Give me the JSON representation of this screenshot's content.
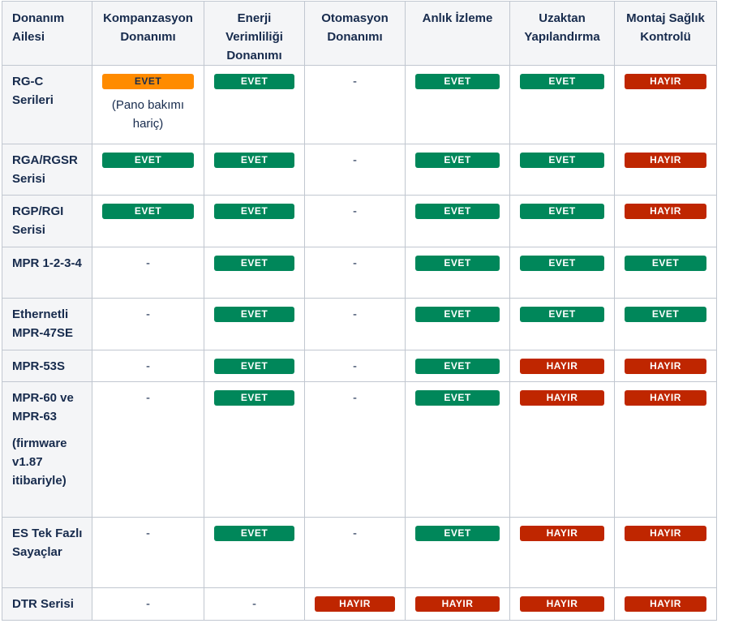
{
  "headers": [
    "Donanım Ailesi",
    "Kompanzasyon Donanımı",
    "Enerji Verimliliği Donanımı",
    "Otomasyon Donanımı",
    "Anlık İzleme",
    "Uzaktan Yapılandırma",
    "Montaj Sağlık Kontrolü"
  ],
  "rows": [
    {
      "family": "RG-C Serileri",
      "family_note": "",
      "cells": [
        {
          "kind": "badge",
          "label": "EVET",
          "color": "orange",
          "note": "(Pano bakımı hariç)"
        },
        {
          "kind": "badge",
          "label": "EVET",
          "color": "green"
        },
        {
          "kind": "dash",
          "label": "-"
        },
        {
          "kind": "badge",
          "label": "EVET",
          "color": "green"
        },
        {
          "kind": "badge",
          "label": "EVET",
          "color": "green"
        },
        {
          "kind": "badge",
          "label": "HAYIR",
          "color": "red"
        }
      ]
    },
    {
      "family": "RGA/RGSR Serisi",
      "family_note": "",
      "cells": [
        {
          "kind": "badge",
          "label": "EVET",
          "color": "green"
        },
        {
          "kind": "badge",
          "label": "EVET",
          "color": "green"
        },
        {
          "kind": "dash",
          "label": "-"
        },
        {
          "kind": "badge",
          "label": "EVET",
          "color": "green"
        },
        {
          "kind": "badge",
          "label": "EVET",
          "color": "green"
        },
        {
          "kind": "badge",
          "label": "HAYIR",
          "color": "red"
        }
      ]
    },
    {
      "family": "RGP/RGI Serisi",
      "family_note": "",
      "cells": [
        {
          "kind": "badge",
          "label": "EVET",
          "color": "green"
        },
        {
          "kind": "badge",
          "label": "EVET",
          "color": "green"
        },
        {
          "kind": "dash",
          "label": "-"
        },
        {
          "kind": "badge",
          "label": "EVET",
          "color": "green"
        },
        {
          "kind": "badge",
          "label": "EVET",
          "color": "green"
        },
        {
          "kind": "badge",
          "label": "HAYIR",
          "color": "red"
        }
      ]
    },
    {
      "family": "MPR 1-2-3-4",
      "family_note": "",
      "cells": [
        {
          "kind": "dash",
          "label": "-"
        },
        {
          "kind": "badge",
          "label": "EVET",
          "color": "green"
        },
        {
          "kind": "dash",
          "label": "-"
        },
        {
          "kind": "badge",
          "label": "EVET",
          "color": "green"
        },
        {
          "kind": "badge",
          "label": "EVET",
          "color": "green"
        },
        {
          "kind": "badge",
          "label": "EVET",
          "color": "green"
        }
      ]
    },
    {
      "family": "Ethernetli MPR-47SE",
      "family_note": "",
      "cells": [
        {
          "kind": "dash",
          "label": "-"
        },
        {
          "kind": "badge",
          "label": "EVET",
          "color": "green"
        },
        {
          "kind": "dash",
          "label": "-"
        },
        {
          "kind": "badge",
          "label": "EVET",
          "color": "green"
        },
        {
          "kind": "badge",
          "label": "EVET",
          "color": "green"
        },
        {
          "kind": "badge",
          "label": "EVET",
          "color": "green"
        }
      ]
    },
    {
      "family": "MPR-53S",
      "family_note": "",
      "cells": [
        {
          "kind": "dash",
          "label": "-"
        },
        {
          "kind": "badge",
          "label": "EVET",
          "color": "green"
        },
        {
          "kind": "dash",
          "label": "-"
        },
        {
          "kind": "badge",
          "label": "EVET",
          "color": "green"
        },
        {
          "kind": "badge",
          "label": "HAYIR",
          "color": "red"
        },
        {
          "kind": "badge",
          "label": "HAYIR",
          "color": "red"
        }
      ]
    },
    {
      "family": "MPR-60 ve MPR-63",
      "family_note": "(firmware v1.87 itibariyle)",
      "cells": [
        {
          "kind": "dash",
          "label": "-"
        },
        {
          "kind": "badge",
          "label": "EVET",
          "color": "green"
        },
        {
          "kind": "dash",
          "label": "-"
        },
        {
          "kind": "badge",
          "label": "EVET",
          "color": "green"
        },
        {
          "kind": "badge",
          "label": "HAYIR",
          "color": "red"
        },
        {
          "kind": "badge",
          "label": "HAYIR",
          "color": "red"
        }
      ]
    },
    {
      "family": "ES Tek Fazlı Sayaçlar",
      "family_note": "",
      "cells": [
        {
          "kind": "dash",
          "label": "-"
        },
        {
          "kind": "badge",
          "label": "EVET",
          "color": "green"
        },
        {
          "kind": "dash",
          "label": "-"
        },
        {
          "kind": "badge",
          "label": "EVET",
          "color": "green"
        },
        {
          "kind": "badge",
          "label": "HAYIR",
          "color": "red"
        },
        {
          "kind": "badge",
          "label": "HAYIR",
          "color": "red"
        }
      ]
    },
    {
      "family": "DTR Serisi",
      "family_note": "",
      "cells": [
        {
          "kind": "dash",
          "label": "-"
        },
        {
          "kind": "dash",
          "label": "-"
        },
        {
          "kind": "badge",
          "label": "HAYIR",
          "color": "red"
        },
        {
          "kind": "badge",
          "label": "HAYIR",
          "color": "red"
        },
        {
          "kind": "badge",
          "label": "HAYIR",
          "color": "red"
        },
        {
          "kind": "badge",
          "label": "HAYIR",
          "color": "red"
        }
      ]
    }
  ],
  "colors": {
    "green": "#00875a",
    "red": "#bf2600",
    "orange": "#ff8b00",
    "header_bg": "#f4f5f7",
    "border": "#c1c7d0",
    "text": "#172b4d"
  }
}
